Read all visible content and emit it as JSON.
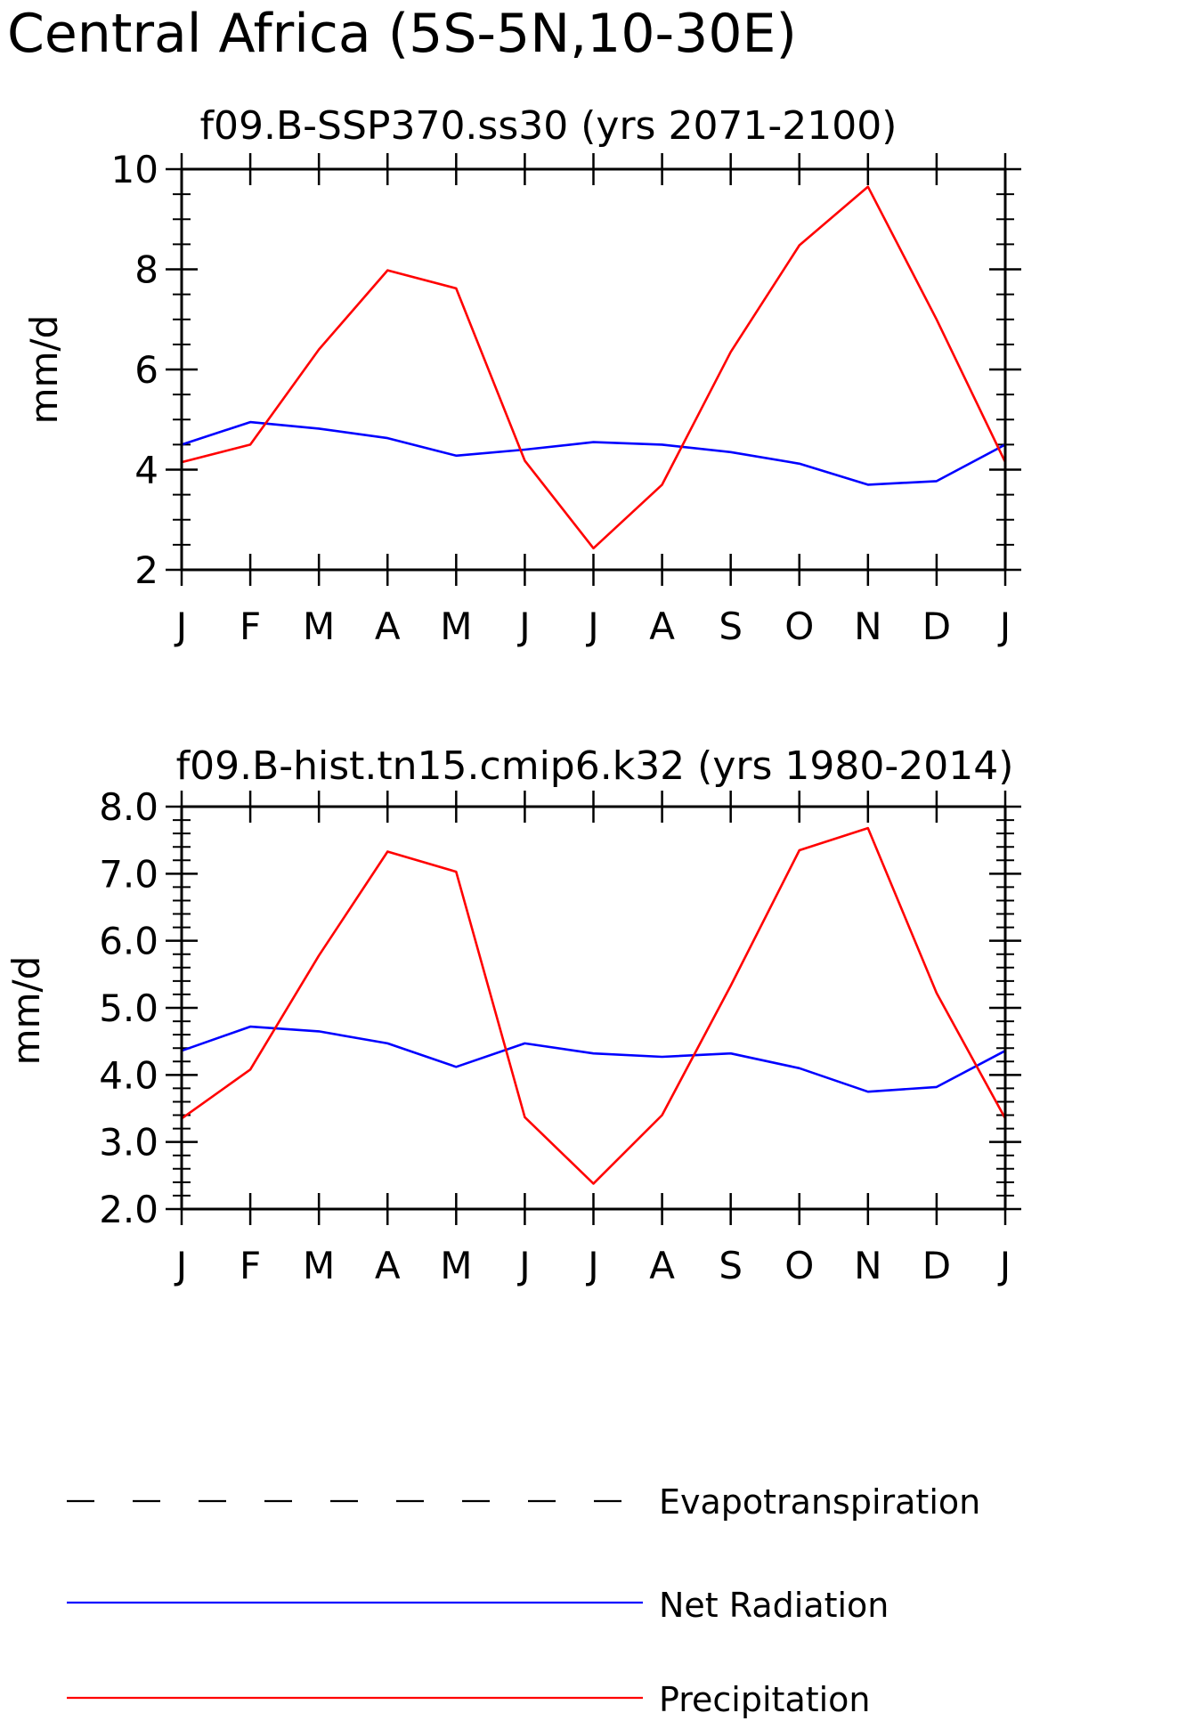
{
  "title": "Central Africa (5S-5N,10-30E)",
  "chart_data": [
    {
      "type": "line",
      "title": "f09.B-SSP370.ss30 (yrs 2071-2100)",
      "ylabel": "mm/d",
      "xlabel": "",
      "categories": [
        "J",
        "F",
        "M",
        "A",
        "M",
        "J",
        "J",
        "A",
        "S",
        "O",
        "N",
        "D",
        "J"
      ],
      "ylim": [
        2,
        10
      ],
      "y_ticks": [
        "2",
        "4",
        "6",
        "8",
        "10"
      ],
      "series": [
        {
          "name": "Net Radiation",
          "color": "#0000ff",
          "style": "solid",
          "values": [
            4.5,
            4.95,
            4.82,
            4.63,
            4.28,
            4.4,
            4.55,
            4.5,
            4.35,
            4.12,
            3.7,
            3.77,
            4.5
          ]
        },
        {
          "name": "Precipitation",
          "color": "#ff0000",
          "style": "solid",
          "values": [
            4.15,
            4.5,
            6.4,
            7.98,
            7.62,
            4.18,
            2.43,
            3.7,
            6.35,
            8.48,
            9.65,
            7.0,
            4.15
          ]
        }
      ]
    },
    {
      "type": "line",
      "title": "f09.B-hist.tn15.cmip6.k32 (yrs 1980-2014)",
      "ylabel": "mm/d",
      "xlabel": "",
      "categories": [
        "J",
        "F",
        "M",
        "A",
        "M",
        "J",
        "J",
        "A",
        "S",
        "O",
        "N",
        "D",
        "J"
      ],
      "ylim": [
        2,
        8
      ],
      "y_ticks": [
        "2.0",
        "3.0",
        "4.0",
        "5.0",
        "6.0",
        "7.0",
        "8.0"
      ],
      "series": [
        {
          "name": "Net Radiation",
          "color": "#0000ff",
          "style": "solid",
          "values": [
            4.36,
            4.72,
            4.65,
            4.47,
            4.12,
            4.47,
            4.32,
            4.27,
            4.32,
            4.1,
            3.75,
            3.82,
            4.36
          ]
        },
        {
          "name": "Precipitation",
          "color": "#ff0000",
          "style": "solid",
          "values": [
            3.35,
            4.08,
            5.78,
            7.33,
            7.03,
            3.37,
            2.38,
            3.4,
            5.33,
            7.35,
            7.68,
            5.22,
            3.35
          ]
        }
      ]
    }
  ],
  "legend": [
    {
      "label": "Evapotranspiration",
      "color": "#000000",
      "style": "dashed"
    },
    {
      "label": "Net Radiation",
      "color": "#0000ff",
      "style": "solid"
    },
    {
      "label": "Precipitation",
      "color": "#ff0000",
      "style": "solid"
    }
  ]
}
